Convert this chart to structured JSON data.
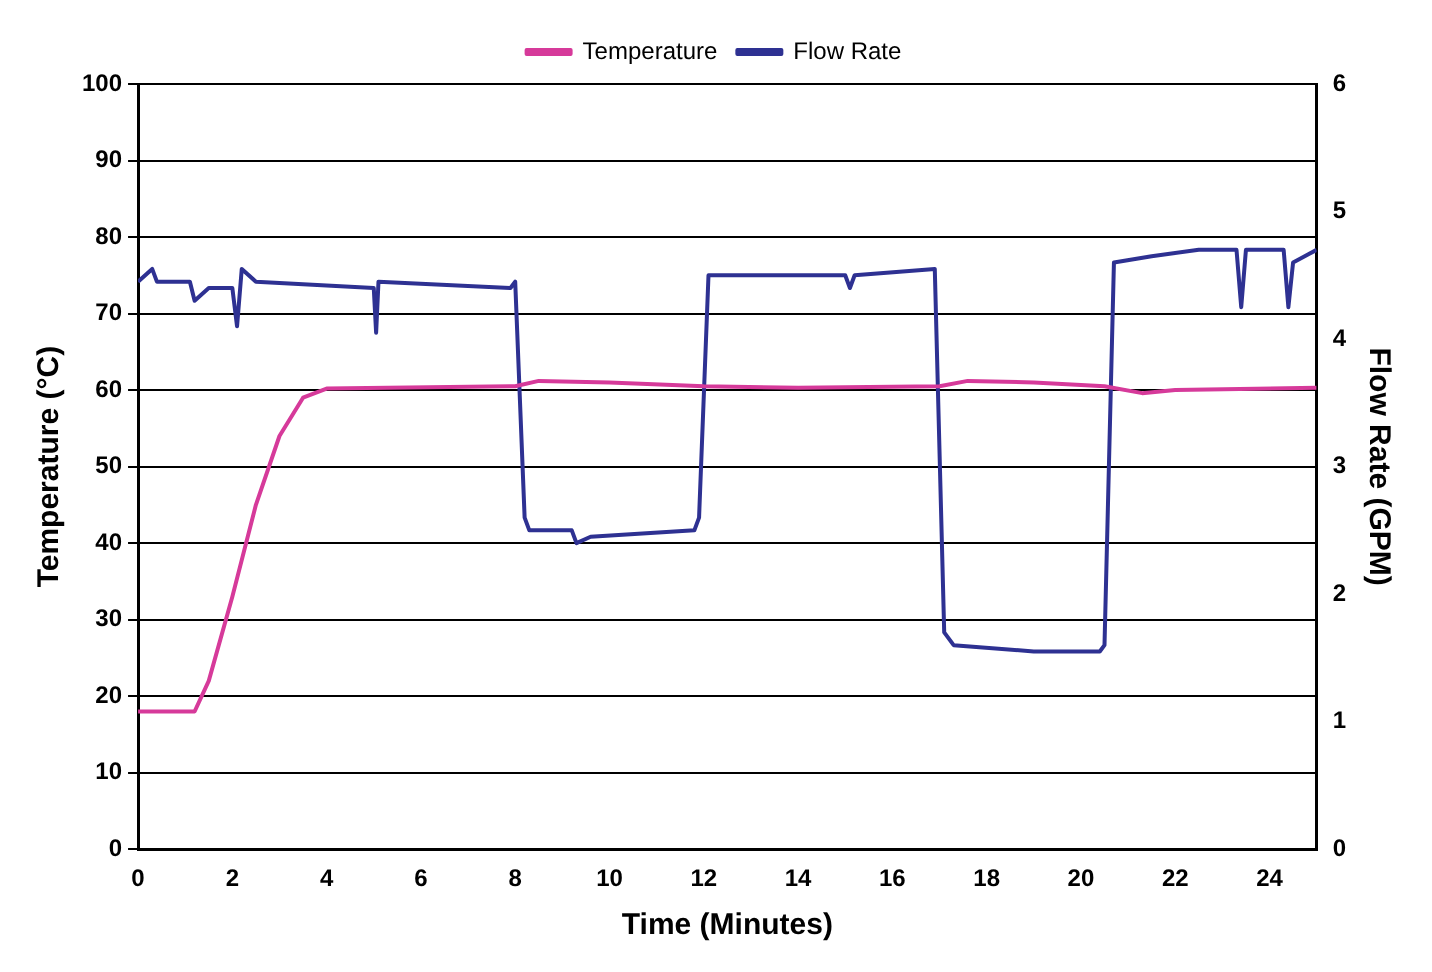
{
  "chart_data": {
    "type": "line",
    "xlabel": "Time (Minutes)",
    "ylabel": "Temperature (°C)",
    "y2label": "Flow Rate (GPM)",
    "xlim": [
      0,
      25
    ],
    "xticks": [
      0,
      2,
      4,
      6,
      8,
      10,
      12,
      14,
      16,
      18,
      20,
      22,
      24
    ],
    "ylim": [
      0,
      100
    ],
    "yticks": [
      0,
      10,
      20,
      30,
      40,
      50,
      60,
      70,
      80,
      90,
      100
    ],
    "y2lim": [
      0,
      6
    ],
    "y2ticks": [
      0,
      1,
      2,
      3,
      4,
      5,
      6
    ],
    "grid": "y",
    "legend": "top",
    "marker": "none",
    "line_style": "solid",
    "series": [
      {
        "name": "Temperature",
        "color": "#d63a9a",
        "x": [
          0,
          1.2,
          1.5,
          2,
          2.5,
          3,
          3.5,
          4,
          8,
          8.5,
          10,
          12,
          14,
          17,
          17.6,
          19,
          20.5,
          21.3,
          22,
          25
        ],
        "values": [
          18,
          18,
          22,
          33,
          45,
          54,
          59,
          60.2,
          60.5,
          61.2,
          61,
          60.5,
          60.3,
          60.5,
          61.2,
          61,
          60.5,
          59.6,
          60,
          60.3
        ]
      },
      {
        "name": "Flow Rate",
        "color": "#2e3192",
        "axis": "y2",
        "x": [
          0,
          0.3,
          0.4,
          1.1,
          1.2,
          1.5,
          2.0,
          2.1,
          2.2,
          2.5,
          5.0,
          5.05,
          5.1,
          7.9,
          8.0,
          8.2,
          8.3,
          9.2,
          9.3,
          9.6,
          11.8,
          11.9,
          12.1,
          13,
          15.0,
          15.1,
          15.2,
          16.9,
          17.1,
          17.3,
          19.0,
          20.4,
          20.5,
          20.7,
          21.5,
          22.5,
          23.3,
          23.4,
          23.5,
          24.3,
          24.4,
          24.5,
          25
        ],
        "values": [
          4.45,
          4.55,
          4.45,
          4.45,
          4.3,
          4.4,
          4.4,
          4.1,
          4.55,
          4.45,
          4.4,
          4.05,
          4.45,
          4.4,
          4.45,
          2.6,
          2.5,
          2.5,
          2.4,
          2.45,
          2.5,
          2.6,
          4.5,
          4.5,
          4.5,
          4.4,
          4.5,
          4.55,
          1.7,
          1.6,
          1.55,
          1.55,
          1.6,
          4.6,
          4.65,
          4.7,
          4.7,
          4.25,
          4.7,
          4.7,
          4.25,
          4.6,
          4.7
        ]
      }
    ]
  }
}
